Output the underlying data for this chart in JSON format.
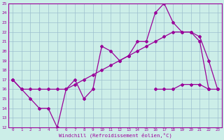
{
  "xlabel": "Windchill (Refroidissement éolien,°C)",
  "bg_color": "#cceee8",
  "line_color": "#990099",
  "grid_color": "#99bbcc",
  "ylim": [
    12,
    25
  ],
  "xlim": [
    -0.5,
    23.5
  ],
  "line_A_x": [
    0,
    1,
    2,
    3,
    4,
    5,
    6,
    7,
    8,
    9,
    10,
    11,
    12,
    13,
    14,
    15,
    16,
    17,
    18,
    19,
    20,
    21,
    22,
    23
  ],
  "line_A_y": [
    17,
    16,
    15,
    14,
    14,
    12,
    16,
    17,
    15,
    16,
    20.5,
    20,
    19,
    19.5,
    21,
    21,
    24,
    25,
    23,
    22,
    22,
    21,
    16,
    null
  ],
  "line_B_x": [
    0,
    1,
    2,
    3,
    4,
    5,
    6,
    7,
    8,
    9,
    10,
    11,
    12,
    13,
    14,
    15,
    16,
    17,
    18,
    19,
    20,
    21,
    22,
    23
  ],
  "line_B_y": [
    17,
    null,
    null,
    null,
    null,
    null,
    null,
    null,
    null,
    null,
    null,
    null,
    null,
    null,
    null,
    null,
    16,
    16,
    16,
    16.5,
    16.5,
    16.5,
    16,
    16
  ],
  "line_C_x": [
    0,
    1,
    2,
    3,
    4,
    5,
    6,
    7,
    8,
    9,
    10,
    11,
    12,
    13,
    14,
    15,
    16,
    17,
    18,
    19,
    20,
    21,
    22,
    23
  ],
  "line_C_y": [
    17,
    16,
    16,
    16,
    16,
    16,
    16,
    16.5,
    17,
    17.5,
    18,
    18.5,
    19,
    19.5,
    20,
    20.5,
    21,
    21.5,
    22,
    22,
    22,
    21.5,
    19,
    16
  ]
}
